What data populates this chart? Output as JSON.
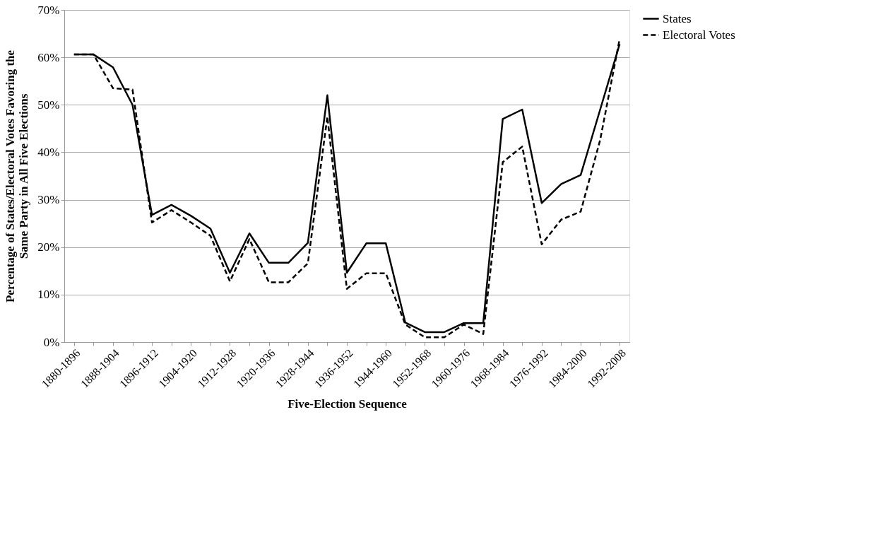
{
  "chart_data": {
    "type": "line",
    "xlabel": "Five-Election Sequence",
    "ylabel": "Percentage of States/Electoral Votes Favoring the\nSame Party in All Five Elections",
    "categories": [
      "1880-1896",
      null,
      "1888-1904",
      null,
      "1896-1912",
      null,
      "1904-1920",
      null,
      "1912-1928",
      null,
      "1920-1936",
      null,
      "1928-1944",
      null,
      "1936-1952",
      null,
      "1944-1960",
      null,
      "1952-1968",
      null,
      "1960-1976",
      null,
      "1968-1984",
      null,
      "1976-1992",
      null,
      "1984-2000",
      null,
      "1992-2008"
    ],
    "series": [
      {
        "name": "States",
        "color": "#000000",
        "line_style": "solid",
        "values": [
          60.6,
          60.6,
          57.9,
          50.0,
          26.8,
          28.9,
          26.6,
          23.9,
          14.6,
          22.9,
          16.7,
          16.7,
          20.9,
          52.0,
          14.6,
          20.8,
          20.8,
          4.1,
          2.1,
          2.1,
          4.0,
          4.0,
          47.0,
          49.0,
          29.3,
          33.3,
          35.2,
          49.0,
          62.8
        ]
      },
      {
        "name": "Electoral Votes",
        "color": "#000000",
        "line_style": "dashed",
        "values": [
          60.6,
          60.6,
          53.5,
          53.2,
          25.2,
          27.8,
          25.2,
          22.4,
          12.8,
          21.7,
          12.6,
          12.6,
          16.6,
          47.5,
          11.2,
          14.5,
          14.5,
          3.7,
          1.0,
          1.0,
          3.7,
          1.7,
          37.9,
          41.2,
          20.6,
          25.8,
          27.5,
          42.6,
          63.9
        ]
      }
    ],
    "ylim": [
      0,
      70
    ],
    "yticks": [
      {
        "value": 0,
        "label": "0%"
      },
      {
        "value": 10,
        "label": "10%"
      },
      {
        "value": 20,
        "label": "20%"
      },
      {
        "value": 30,
        "label": "30%"
      },
      {
        "value": 40,
        "label": "40%"
      },
      {
        "value": 50,
        "label": "50%"
      },
      {
        "value": 60,
        "label": "60%"
      },
      {
        "value": 70,
        "label": "70%"
      }
    ],
    "grid": "y",
    "legend": "right",
    "marker": "none"
  }
}
